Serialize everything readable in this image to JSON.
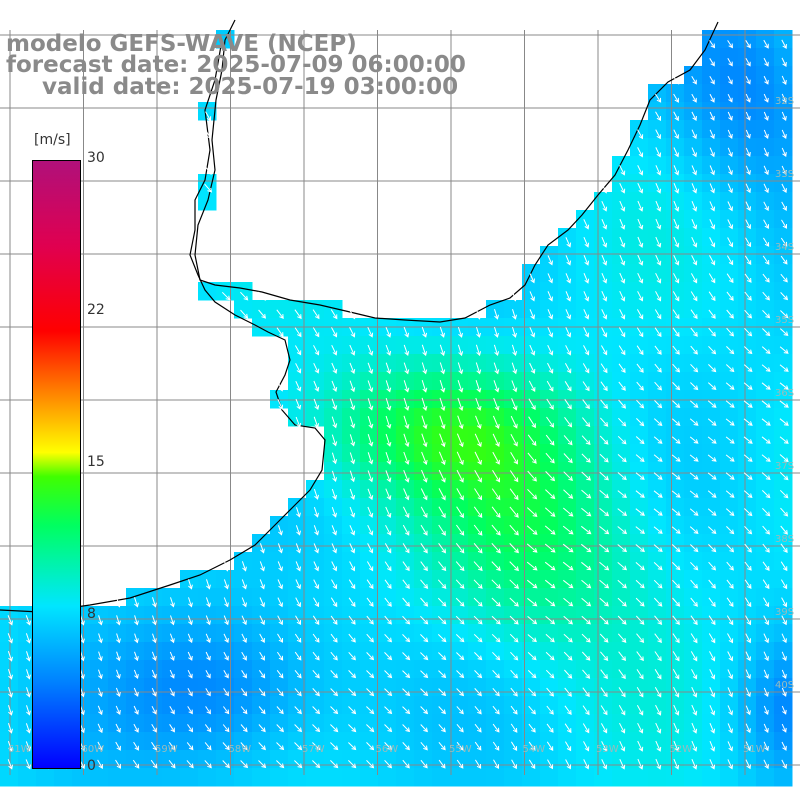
{
  "title": {
    "model": "modelo GEFS-WAVE (NCEP)",
    "forecast": "forecast date: 2025-07-09 06:00:00",
    "valid": "valid date: 2025-07-19 03:00:00"
  },
  "colorbar": {
    "unit": "[m/s]",
    "ticks": [
      "30",
      "22",
      "15",
      "8",
      "0"
    ],
    "tick_values": [
      30,
      22,
      15,
      8,
      0
    ],
    "range": [
      0,
      30
    ],
    "colors": [
      "#0000ff",
      "#0080ff",
      "#00e6ff",
      "#00ff60",
      "#40ff00",
      "#ffff00",
      "#ff8000",
      "#ff0000",
      "#e00050",
      "#b0107a"
    ]
  },
  "map": {
    "background": "#ffffff",
    "grid_color": "#888888",
    "coast_color": "#000000",
    "arrow_color": "#ffffff",
    "right_labels": [
      "32S",
      "33S",
      "34S",
      "35S",
      "36S",
      "37S",
      "38S",
      "39S",
      "40S"
    ],
    "bottom_labels": [
      "61W",
      "60W",
      "59W",
      "58W",
      "57W",
      "56W",
      "55W",
      "54W",
      "53W",
      "52W",
      "51W"
    ]
  }
}
